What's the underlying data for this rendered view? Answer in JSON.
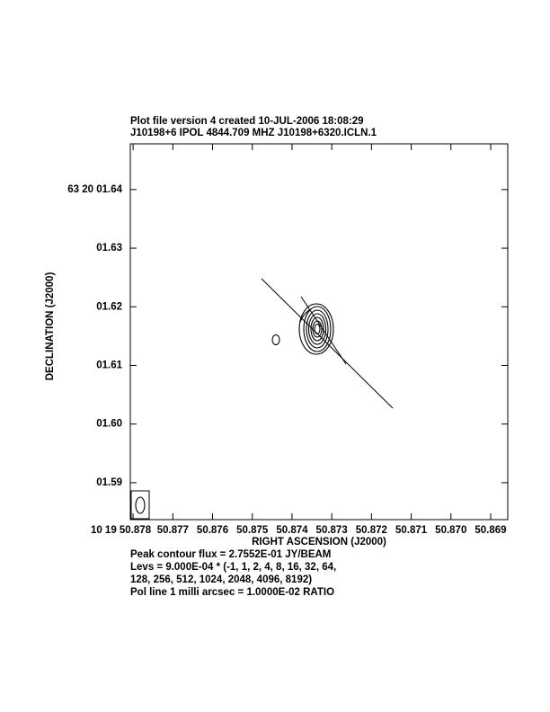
{
  "chart_data": {
    "type": "contour",
    "title": "Plot file version 4  created 10-JUL-2006 18:08:29",
    "subtitle": "J10198+6  IPOL  4844.709 MHZ  J10198+6320.ICLN.1",
    "x_label": "RIGHT ASCENSION (J2000)",
    "y_label": "DECLINATION (J2000)",
    "xlim": [
      50.87807,
      50.86857
    ],
    "ylim": [
      1.6478,
      1.5837
    ],
    "xticks": [
      {
        "value": 50.878,
        "label": "10 19 50.878"
      },
      {
        "value": 50.877,
        "label": "50.877"
      },
      {
        "value": 50.876,
        "label": "50.876"
      },
      {
        "value": 50.875,
        "label": "50.875"
      },
      {
        "value": 50.874,
        "label": "50.874"
      },
      {
        "value": 50.873,
        "label": "50.873"
      },
      {
        "value": 50.872,
        "label": "50.872"
      },
      {
        "value": 50.871,
        "label": "50.871"
      },
      {
        "value": 50.87,
        "label": "50.870"
      },
      {
        "value": 50.869,
        "label": "50.869"
      }
    ],
    "yticks": [
      {
        "value": 1.64,
        "label": "63 20 01.64"
      },
      {
        "value": 1.63,
        "label": "01.63"
      },
      {
        "value": 1.62,
        "label": "01.62"
      },
      {
        "value": 1.61,
        "label": "01.61"
      },
      {
        "value": 1.6,
        "label": "01.60"
      },
      {
        "value": 1.59,
        "label": "01.59"
      }
    ],
    "notes": [
      "Peak contour flux =  2.7552E-01 JY/BEAM",
      "Levs = 9.000E-04 * (-1, 1, 2, 4, 8, 16, 32, 64,",
      "128, 256, 512, 1024, 2048, 4096, 8192)",
      "Pol line 1 milli arcsec =  1.0000E-02 RATIO"
    ]
  }
}
